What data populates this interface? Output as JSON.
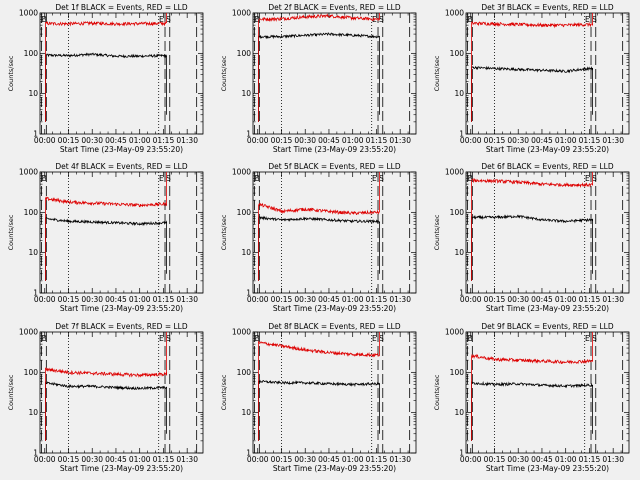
{
  "figure": {
    "xlabel": "Start Time (23-May-09 23:55:20)",
    "ylabel": "Counts/sec",
    "xticks": [
      "00:00",
      "00:15",
      "00:30",
      "00:45",
      "01:00",
      "01:15",
      "01:30"
    ],
    "yticks": [
      "1",
      "10",
      "100",
      "1000"
    ],
    "start_marker": "B",
    "end_marker": "E",
    "end_marker2": "S",
    "colors": {
      "events": "#000000",
      "lld": "#dd0000",
      "background": "#f0f0f0"
    }
  },
  "chart_data": [
    {
      "type": "line",
      "title": "Det 1f BLACK = Events, RED = LLD",
      "xlabel": "Start Time (23-May-09 23:55:20)",
      "ylabel": "Counts/sec",
      "x_unit": "minutes after 00:00",
      "xlim": [
        -3,
        100
      ],
      "ylim": [
        1,
        1000
      ],
      "yscale": "log",
      "series": [
        {
          "name": "Events",
          "color": "#000000",
          "x": [
            0,
            15,
            30,
            45,
            60,
            75
          ],
          "values": [
            90,
            88,
            95,
            85,
            85,
            88
          ]
        },
        {
          "name": "LLD",
          "color": "#dd0000",
          "x": [
            0,
            15,
            30,
            45,
            60,
            75
          ],
          "values": [
            550,
            540,
            560,
            540,
            545,
            550
          ]
        }
      ]
    },
    {
      "type": "line",
      "title": "Det 2f BLACK = Events, RED = LLD",
      "xlabel": "Start Time (23-May-09 23:55:20)",
      "ylabel": "Counts/sec",
      "x_unit": "minutes after 00:00",
      "xlim": [
        -3,
        100
      ],
      "ylim": [
        1,
        1000
      ],
      "yscale": "log",
      "series": [
        {
          "name": "Events",
          "color": "#000000",
          "x": [
            0,
            15,
            30,
            45,
            60,
            75
          ],
          "values": [
            260,
            260,
            280,
            300,
            280,
            260
          ]
        },
        {
          "name": "LLD",
          "color": "#dd0000",
          "x": [
            0,
            15,
            30,
            45,
            60,
            75
          ],
          "values": [
            700,
            720,
            800,
            850,
            750,
            700
          ]
        }
      ]
    },
    {
      "type": "line",
      "title": "Det 3f BLACK = Events, RED = LLD",
      "xlabel": "Start Time (23-May-09 23:55:20)",
      "ylabel": "Counts/sec",
      "x_unit": "minutes after 00:00",
      "xlim": [
        -3,
        100
      ],
      "ylim": [
        1,
        1000
      ],
      "yscale": "log",
      "series": [
        {
          "name": "Events",
          "color": "#000000",
          "x": [
            0,
            15,
            30,
            45,
            60,
            75
          ],
          "values": [
            45,
            42,
            40,
            38,
            36,
            42
          ]
        },
        {
          "name": "LLD",
          "color": "#dd0000",
          "x": [
            0,
            15,
            30,
            45,
            60,
            75
          ],
          "values": [
            560,
            540,
            520,
            500,
            500,
            520
          ]
        }
      ]
    },
    {
      "type": "line",
      "title": "Det 4f BLACK = Events, RED = LLD",
      "xlabel": "Start Time (23-May-09 23:55:20)",
      "ylabel": "Counts/sec",
      "x_unit": "minutes after 00:00",
      "xlim": [
        -3,
        100
      ],
      "ylim": [
        1,
        1000
      ],
      "yscale": "log",
      "series": [
        {
          "name": "Events",
          "color": "#000000",
          "x": [
            0,
            15,
            30,
            45,
            60,
            75
          ],
          "values": [
            70,
            60,
            58,
            55,
            52,
            55
          ]
        },
        {
          "name": "LLD",
          "color": "#dd0000",
          "x": [
            0,
            15,
            30,
            45,
            60,
            75
          ],
          "values": [
            220,
            180,
            170,
            160,
            150,
            160
          ]
        }
      ]
    },
    {
      "type": "line",
      "title": "Det 5f BLACK = Events, RED = LLD",
      "xlabel": "Start Time (23-May-09 23:55:20)",
      "ylabel": "Counts/sec",
      "x_unit": "minutes after 00:00",
      "xlim": [
        -3,
        100
      ],
      "ylim": [
        1,
        1000
      ],
      "yscale": "log",
      "series": [
        {
          "name": "Events",
          "color": "#000000",
          "x": [
            0,
            15,
            30,
            45,
            60,
            75
          ],
          "values": [
            75,
            65,
            70,
            65,
            60,
            60
          ]
        },
        {
          "name": "LLD",
          "color": "#dd0000",
          "x": [
            0,
            15,
            30,
            45,
            60,
            75
          ],
          "values": [
            160,
            105,
            120,
            105,
            95,
            100
          ]
        }
      ]
    },
    {
      "type": "line",
      "title": "Det 6f BLACK = Events, RED = LLD",
      "xlabel": "Start Time (23-May-09 23:55:20)",
      "ylabel": "Counts/sec",
      "x_unit": "minutes after 00:00",
      "xlim": [
        -3,
        100
      ],
      "ylim": [
        1,
        1000
      ],
      "yscale": "log",
      "series": [
        {
          "name": "Events",
          "color": "#000000",
          "x": [
            0,
            15,
            30,
            45,
            60,
            75
          ],
          "values": [
            75,
            75,
            80,
            65,
            60,
            65
          ]
        },
        {
          "name": "LLD",
          "color": "#dd0000",
          "x": [
            0,
            15,
            30,
            45,
            60,
            75
          ],
          "values": [
            620,
            600,
            560,
            500,
            480,
            480
          ]
        }
      ]
    },
    {
      "type": "line",
      "title": "Det 7f BLACK = Events, RED = LLD",
      "xlabel": "Start Time (23-May-09 23:55:20)",
      "ylabel": "Counts/sec",
      "x_unit": "minutes after 00:00",
      "xlim": [
        -3,
        100
      ],
      "ylim": [
        1,
        1000
      ],
      "yscale": "log",
      "series": [
        {
          "name": "Events",
          "color": "#000000",
          "x": [
            0,
            15,
            30,
            45,
            60,
            75
          ],
          "values": [
            55,
            45,
            45,
            42,
            40,
            42
          ]
        },
        {
          "name": "LLD",
          "color": "#dd0000",
          "x": [
            0,
            15,
            30,
            45,
            60,
            75
          ],
          "values": [
            120,
            100,
            95,
            90,
            85,
            90
          ]
        }
      ]
    },
    {
      "type": "line",
      "title": "Det 8f BLACK = Events, RED = LLD",
      "xlabel": "Start Time (23-May-09 23:55:20)",
      "ylabel": "Counts/sec",
      "x_unit": "minutes after 00:00",
      "xlim": [
        -3,
        100
      ],
      "ylim": [
        1,
        1000
      ],
      "yscale": "log",
      "series": [
        {
          "name": "Events",
          "color": "#000000",
          "x": [
            0,
            15,
            30,
            45,
            60,
            75
          ],
          "values": [
            60,
            55,
            55,
            52,
            50,
            52
          ]
        },
        {
          "name": "LLD",
          "color": "#dd0000",
          "x": [
            0,
            15,
            30,
            45,
            60,
            75
          ],
          "values": [
            550,
            450,
            360,
            310,
            280,
            270
          ]
        }
      ]
    },
    {
      "type": "line",
      "title": "Det 9f BLACK = Events, RED = LLD",
      "xlabel": "Start Time (23-May-09 23:55:20)",
      "ylabel": "Counts/sec",
      "x_unit": "minutes after 00:00",
      "xlim": [
        -3,
        100
      ],
      "ylim": [
        1,
        1000
      ],
      "yscale": "log",
      "series": [
        {
          "name": "Events",
          "color": "#000000",
          "x": [
            0,
            15,
            30,
            45,
            60,
            75
          ],
          "values": [
            55,
            50,
            52,
            48,
            46,
            48
          ]
        },
        {
          "name": "LLD",
          "color": "#dd0000",
          "x": [
            0,
            15,
            30,
            45,
            60,
            75
          ],
          "values": [
            260,
            210,
            200,
            190,
            180,
            190
          ]
        }
      ]
    }
  ]
}
